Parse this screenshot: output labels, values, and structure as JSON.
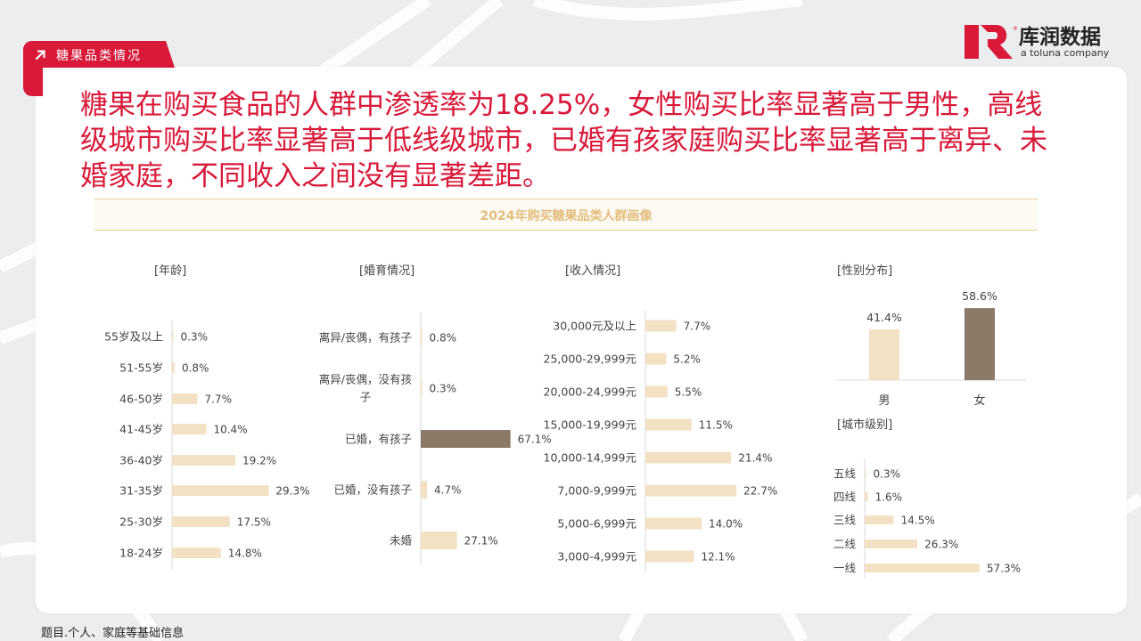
{
  "section_tag": "糖果品类情况",
  "logo": {
    "cn": "库润数据",
    "en": "a toluna company"
  },
  "headline": "糖果在购买食品的人群中渗透率为18.25%，女性购买比率显著高于男性，高线级城市购买比率显著高于低线级城市，已婚有孩家庭购买比率显著高于离异、未婚家庭，不同收入之间没有显著差距。",
  "band_title": "2024年购买糖果品类人群画像",
  "footnote": "题目.个人、家庭等基础信息",
  "colors": {
    "accent": "#d8193a",
    "bar_light": "#f3e1c4",
    "bar_dark": "#8a7a67",
    "gold": "#e3bd7e"
  },
  "chart_data": [
    {
      "type": "bar",
      "orientation": "horizontal",
      "title": "[年龄]",
      "categories": [
        "55岁及以上",
        "51-55岁",
        "46-50岁",
        "41-45岁",
        "36-40岁",
        "31-35岁",
        "25-30岁",
        "18-24岁"
      ],
      "values": [
        0.3,
        0.8,
        7.7,
        10.4,
        19.2,
        29.3,
        17.5,
        14.8
      ],
      "labels": [
        "0.3%",
        "0.8%",
        "7.7%",
        "10.4%",
        "19.2%",
        "29.3%",
        "17.5%",
        "14.8%"
      ],
      "highlight": []
    },
    {
      "type": "bar",
      "orientation": "horizontal",
      "title": "[婚育情况]",
      "categories": [
        [
          "离异/丧偶，有孩子"
        ],
        [
          "离异/丧偶，没有孩",
          "子"
        ],
        [
          "已婚，有孩子"
        ],
        [
          "已婚，没有孩子"
        ],
        [
          "未婚"
        ]
      ],
      "values": [
        0.8,
        0.3,
        67.1,
        4.7,
        27.1
      ],
      "labels": [
        "0.8%",
        "0.3%",
        "67.1%",
        "4.7%",
        "27.1%"
      ],
      "highlight": [
        2
      ]
    },
    {
      "type": "bar",
      "orientation": "horizontal",
      "title": "[收入情况]",
      "categories": [
        "30,000元及以上",
        "25,000-29,999元",
        "20,000-24,999元",
        "15,000-19,999元",
        "10,000-14,999元",
        "7,000-9,999元",
        "5,000-6,999元",
        "3,000-4,999元"
      ],
      "values": [
        7.7,
        5.2,
        5.5,
        11.5,
        21.4,
        22.7,
        14.0,
        12.1
      ],
      "labels": [
        "7.7%",
        "5.2%",
        "5.5%",
        "11.5%",
        "21.4%",
        "22.7%",
        "14.0%",
        "12.1%"
      ],
      "highlight": []
    },
    {
      "type": "bar",
      "orientation": "vertical",
      "title": "[性别分布]",
      "categories": [
        "男",
        "女"
      ],
      "values": [
        41.4,
        58.6
      ],
      "labels": [
        "41.4%",
        "58.6%"
      ],
      "highlight": [
        1
      ]
    },
    {
      "type": "bar",
      "orientation": "horizontal",
      "title": "[城市级别]",
      "categories": [
        "五线",
        "四线",
        "三线",
        "二线",
        "一线"
      ],
      "values": [
        0.3,
        1.6,
        14.5,
        26.3,
        57.3
      ],
      "labels": [
        "0.3%",
        "1.6%",
        "14.5%",
        "26.3%",
        "57.3%"
      ],
      "highlight": []
    }
  ]
}
